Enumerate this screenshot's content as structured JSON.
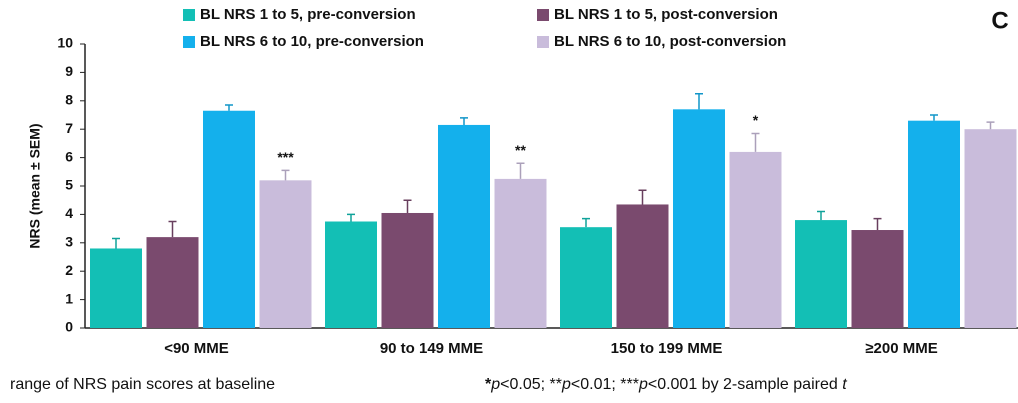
{
  "chart_data": {
    "type": "bar",
    "panel_label": "C",
    "y_label": "NRS (mean ± SEM)",
    "categories": [
      "<90 MME",
      "90 to 149 MME",
      "150 to 199 MME",
      "≥200 MME"
    ],
    "series": [
      {
        "name": "BL NRS 1 to 5, pre-conversion",
        "color": "#13bfb5",
        "values": [
          2.8,
          3.75,
          3.55,
          3.8
        ],
        "errors": [
          0.35,
          0.25,
          0.3,
          0.3
        ]
      },
      {
        "name": "BL NRS 1 to 5, post-conversion",
        "color": "#7a4a6e",
        "values": [
          3.2,
          4.05,
          4.35,
          3.45
        ],
        "errors": [
          0.55,
          0.45,
          0.5,
          0.4
        ]
      },
      {
        "name": "BL NRS 6 to 10, pre-conversion",
        "color": "#14b0ec",
        "values": [
          7.65,
          7.15,
          7.7,
          7.3
        ],
        "errors": [
          0.2,
          0.25,
          0.55,
          0.2
        ]
      },
      {
        "name": "BL NRS 6 to 10, post-conversion",
        "color": "#c9bcdb",
        "values": [
          5.2,
          5.25,
          6.2,
          7.0
        ],
        "errors": [
          0.35,
          0.55,
          0.65,
          0.25
        ],
        "significance": [
          "***",
          "**",
          "*",
          null
        ]
      }
    ],
    "ylim": [
      0,
      10
    ],
    "yticks": [
      0,
      1,
      2,
      3,
      4,
      5,
      6,
      7,
      8,
      9,
      10
    ],
    "grid": false,
    "caption": "range of NRS pain scores at baseline",
    "footnote_parts": [
      "*",
      "p",
      "<0.05; **",
      "p",
      "<0.01; ***",
      "p",
      "<0.001 by 2-sample paired ",
      "t"
    ]
  }
}
